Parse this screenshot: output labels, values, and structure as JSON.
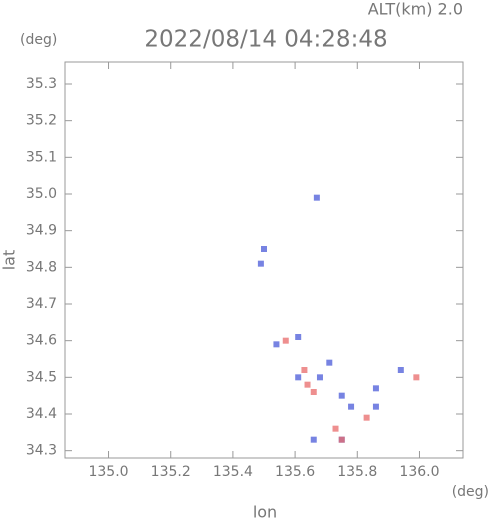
{
  "chart_data": {
    "type": "scatter",
    "title": "2022/08/14 04:28:48",
    "subtitle": "ALT(km) 2.0",
    "y_unit": "(deg)",
    "x_unit": "(deg)",
    "x_label": "lon",
    "y_label": "lat",
    "xlim": [
      134.86,
      136.14
    ],
    "ylim": [
      34.28,
      35.36
    ],
    "xticks": [
      {
        "value": 135,
        "label": "135.0"
      },
      135.2,
      135.4,
      135.6,
      135.8,
      {
        "value": 136,
        "label": "136.0"
      }
    ],
    "yticks": [
      34.3,
      34.4,
      34.5,
      34.6,
      34.7,
      34.8,
      34.9,
      {
        "value": 35,
        "label": "35.0"
      },
      35.1,
      35.2,
      35.3
    ],
    "series": [
      {
        "color": "#4a5ad8",
        "x": [
          135.49,
          135.5,
          135.67,
          135.54,
          135.61,
          135.61,
          135.68,
          135.71,
          135.75,
          135.78,
          135.66,
          135.86,
          135.86,
          135.94,
          135.75
        ],
        "y": [
          34.81,
          34.85,
          34.99,
          34.59,
          34.61,
          34.5,
          34.5,
          34.54,
          34.45,
          34.42,
          34.33,
          34.42,
          34.47,
          34.52,
          34.33
        ]
      },
      {
        "color": "#e86a6a",
        "x": [
          135.57,
          135.63,
          135.66,
          135.73,
          135.75,
          135.99,
          135.64,
          135.83
        ],
        "y": [
          34.6,
          34.52,
          34.46,
          34.36,
          34.33,
          34.5,
          34.48,
          34.39
        ]
      }
    ]
  }
}
